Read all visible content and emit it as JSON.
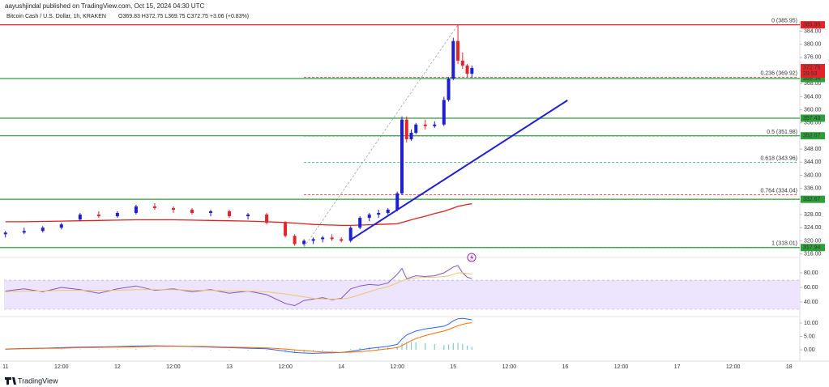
{
  "chart_data": [
    {
      "type": "candlestick",
      "title": "aayushjindal published on TradingView.com, Oct 15, 2024 04:30 UTC",
      "subtitle": "Bitcoin Cash / U.S. Dollar, 1h, KRAKEN",
      "ohlc": "O369.83 H372.75 L369.75 C372.75 +3.06 (+0.83%)",
      "up_color": "#1f1fd1",
      "down_color": "#e5242a",
      "x": [
        0,
        4,
        8,
        12,
        16,
        20,
        24,
        28,
        32,
        36,
        40,
        44,
        48,
        52,
        56,
        60,
        62,
        64,
        66,
        68,
        70,
        72,
        74,
        76,
        78,
        80,
        82,
        84,
        85,
        86,
        87,
        88,
        90,
        92,
        94,
        95,
        96,
        97,
        98,
        99,
        100
      ],
      "open": [
        322,
        322.5,
        323,
        324,
        326.5,
        328,
        327.5,
        328.5,
        330.5,
        330,
        329.5,
        328.5,
        329,
        327.5,
        328,
        325.5,
        321.5,
        319,
        320,
        320.5,
        321,
        320.5,
        320,
        324,
        327,
        328,
        328.5,
        329.5,
        334.5,
        357,
        351,
        353,
        355.5,
        355,
        355.5,
        363,
        369.5,
        381,
        375,
        373.5,
        371
      ],
      "high": [
        323,
        324,
        324.5,
        325.5,
        328.5,
        329,
        329,
        331,
        331.5,
        330.5,
        330,
        329.5,
        329.5,
        328.5,
        328.5,
        326,
        322,
        320.5,
        321,
        321.5,
        322,
        321,
        324.5,
        327.5,
        328.5,
        329.5,
        330,
        335,
        358,
        358,
        354,
        356,
        357,
        356.5,
        364,
        370,
        382,
        385.95,
        377.5,
        374,
        373.5
      ],
      "low": [
        321,
        322,
        322.5,
        323.5,
        326,
        327,
        327,
        328,
        329.5,
        328.5,
        328,
        327.5,
        327,
        326.5,
        325,
        321,
        318.5,
        318.5,
        319,
        319.5,
        320,
        319.5,
        319.5,
        323.5,
        326,
        327,
        328,
        329,
        334,
        350,
        350.5,
        352.5,
        354,
        354.5,
        355,
        362.5,
        369,
        374,
        372.5,
        370,
        369.75
      ],
      "close": [
        322.5,
        323,
        324,
        325,
        328,
        327.5,
        328.5,
        330.5,
        330,
        329.5,
        328.5,
        329,
        327.5,
        328,
        325.5,
        321.5,
        319,
        320,
        320.5,
        321,
        320.5,
        320,
        324,
        327,
        328,
        328.5,
        329.5,
        334.5,
        357,
        351,
        353,
        355.5,
        355,
        355.5,
        363,
        369.5,
        381,
        375,
        373.5,
        371,
        372.75
      ],
      "ma": {
        "color": "#e02020",
        "values": [
          325.8,
          325.8,
          325.9,
          326,
          326.1,
          326.2,
          326.3,
          326.4,
          326.4,
          326.4,
          326.3,
          326.2,
          326.1,
          326,
          325.8,
          325.6,
          325.4,
          325.2,
          325,
          324.9,
          324.8,
          324.7,
          324.7,
          324.8,
          324.9,
          325,
          325.1,
          325.2,
          325.6,
          326,
          326.4,
          326.8,
          327.5,
          328.3,
          329,
          329.5,
          330,
          330.5,
          330.8,
          331.1,
          331.3
        ]
      },
      "trendline": {
        "x": [
          74,
          120.5
        ],
        "values": [
          320.3,
          362.9
        ],
        "color": "#1f1fd1"
      },
      "fib_anchor_x": [
        64,
        97
      ],
      "fib": [
        {
          "label": "0 (385.95)",
          "value": 385.95,
          "color": "#9e9e9e"
        },
        {
          "label": "0.236 (369.92)",
          "value": 369.92,
          "color": "#e5242a"
        },
        {
          "label": "0.5 (351.98)",
          "value": 351.98,
          "color": "#4caf50"
        },
        {
          "label": "0.618 (343.96)",
          "value": 343.96,
          "color": "#26a69a"
        },
        {
          "label": "0.764 (334.04)",
          "value": 334.04,
          "color": "#e5242a"
        },
        {
          "label": "1 (318.01)",
          "value": 318.01,
          "color": "#9e9e9e"
        }
      ],
      "levels": [
        {
          "value": 385.95,
          "color": "#e5242a"
        },
        {
          "value": 369.54,
          "color": "#2e9e3a"
        },
        {
          "value": 357.43,
          "color": "#2e9e3a"
        },
        {
          "value": 352.07,
          "color": "#2e9e3a"
        },
        {
          "value": 332.67,
          "color": "#2e9e3a"
        },
        {
          "value": 317.94,
          "color": "#2e9e3a"
        }
      ],
      "last_price": 372.75,
      "countdown": "29:53",
      "xlim": [
        -0.3,
        170.3
      ],
      "xticks": [
        {
          "value": 0,
          "label": "11"
        },
        {
          "value": 12,
          "label": "12:00"
        },
        {
          "value": 24,
          "label": "12"
        },
        {
          "value": 36,
          "label": "12:00"
        },
        {
          "value": 48,
          "label": "13"
        },
        {
          "value": 60,
          "label": "12:00"
        },
        {
          "value": 72,
          "label": "14"
        },
        {
          "value": 84,
          "label": "12:00"
        },
        {
          "value": 96,
          "label": "15"
        },
        {
          "value": 108,
          "label": "12:00"
        },
        {
          "value": 120,
          "label": "16"
        },
        {
          "value": 132,
          "label": "12:00"
        },
        {
          "value": 144,
          "label": "17"
        },
        {
          "value": 156,
          "label": "12:00"
        },
        {
          "value": 168,
          "label": "18"
        }
      ],
      "ylim": [
        315.8,
        386.4
      ],
      "yticks": [
        {
          "value": 316,
          "label": "316.00"
        },
        {
          "value": 320,
          "label": "320.00"
        },
        {
          "value": 324,
          "label": "324.00"
        },
        {
          "value": 328,
          "label": "328.00"
        },
        {
          "value": 332,
          "label": "332.00"
        },
        {
          "value": 336,
          "label": "336.00"
        },
        {
          "value": 340,
          "label": "340.00"
        },
        {
          "value": 344,
          "label": "344.00"
        },
        {
          "value": 348,
          "label": "348.00"
        },
        {
          "value": 352,
          "label": "352.00"
        },
        {
          "value": 356,
          "label": "356.00"
        },
        {
          "value": 360,
          "label": "360.00"
        },
        {
          "value": 364,
          "label": "364.00"
        },
        {
          "value": 368,
          "label": "368.00"
        },
        {
          "value": 372,
          "label": "372.00"
        },
        {
          "value": 376,
          "label": "376.00"
        },
        {
          "value": 380,
          "label": "380.00"
        },
        {
          "value": 384,
          "label": "384.00"
        }
      ]
    },
    {
      "type": "line",
      "x": [
        0,
        4,
        8,
        12,
        16,
        20,
        24,
        28,
        32,
        36,
        40,
        44,
        48,
        52,
        56,
        60,
        62,
        64,
        66,
        68,
        70,
        72,
        74,
        76,
        78,
        80,
        82,
        84,
        85,
        86,
        87,
        88,
        90,
        92,
        94,
        95,
        96,
        97,
        98,
        99,
        100
      ],
      "series": [
        {
          "color": "#7e57c2",
          "values": [
            55,
            58,
            54,
            60,
            57,
            52,
            58,
            62,
            56,
            58,
            54,
            57,
            52,
            55,
            50,
            38,
            35,
            42,
            44,
            46,
            43,
            45,
            58,
            62,
            64,
            63,
            66,
            78,
            86,
            72,
            74,
            76,
            75,
            76,
            80,
            84,
            88,
            90,
            80,
            74,
            72
          ]
        },
        {
          "color": "#f2c46d",
          "values": [
            54,
            55,
            55,
            56,
            56,
            56,
            56,
            57,
            57,
            57,
            56,
            56,
            55,
            55,
            54,
            51,
            49,
            47,
            45,
            44,
            44,
            44,
            46,
            50,
            54,
            58,
            61,
            66,
            69,
            71,
            72,
            73,
            74,
            74,
            75,
            76,
            78,
            80,
            80,
            79,
            78
          ]
        }
      ],
      "band": [
        30,
        70
      ],
      "band_color": "#e9defc",
      "ylim": [
        21.1,
        96.7
      ],
      "yticks": [
        {
          "value": 40,
          "label": "40.00"
        },
        {
          "value": 60,
          "label": "60.00"
        },
        {
          "value": 80,
          "label": "80.00"
        }
      ]
    },
    {
      "type": "macd",
      "x": [
        0,
        4,
        8,
        12,
        16,
        20,
        24,
        28,
        32,
        36,
        40,
        44,
        48,
        52,
        56,
        60,
        62,
        64,
        66,
        68,
        70,
        72,
        74,
        76,
        78,
        80,
        82,
        84,
        85,
        86,
        87,
        88,
        90,
        92,
        94,
        95,
        96,
        97,
        98,
        99,
        100
      ],
      "series": [
        {
          "color": "#2962ff",
          "values": [
            0.3,
            0.5,
            0.6,
            0.8,
            1,
            1.1,
            1.2,
            1.4,
            1.5,
            1.4,
            1.2,
            1,
            0.8,
            0.6,
            0.4,
            -0.5,
            -1,
            -1.2,
            -1.3,
            -1.2,
            -1.1,
            -1,
            -0.6,
            0,
            0.5,
            0.9,
            1.3,
            2,
            4,
            5.5,
            6.3,
            7,
            7.8,
            8.3,
            8.8,
            9.6,
            10.8,
            11.6,
            11.7,
            11.5,
            11.2
          ]
        },
        {
          "color": "#ff6d00",
          "values": [
            0.2,
            0.4,
            0.5,
            0.6,
            0.8,
            0.9,
            1,
            1.1,
            1.3,
            1.3,
            1.3,
            1.2,
            1,
            0.9,
            0.7,
            0.3,
            0,
            -0.3,
            -0.6,
            -0.8,
            -0.9,
            -1,
            -0.9,
            -0.7,
            -0.4,
            0,
            0.4,
            0.8,
            1.6,
            2.5,
            3.4,
            4.2,
            5.3,
            6.2,
            7,
            7.6,
            8.3,
            9,
            9.5,
            9.9,
            10.1
          ]
        }
      ],
      "histogram": {
        "color": "#80cbc4",
        "values": [
          0.1,
          0.1,
          0.1,
          0.2,
          0.2,
          0.2,
          0.2,
          0.3,
          0.2,
          0.1,
          -0.1,
          -0.2,
          -0.2,
          -0.3,
          -0.3,
          -0.8,
          -1,
          -0.9,
          -0.7,
          -0.4,
          -0.2,
          0,
          0.3,
          0.7,
          0.9,
          0.9,
          0.9,
          1.2,
          2.4,
          3,
          2.9,
          2.8,
          2.5,
          2.1,
          1.8,
          2,
          2.5,
          2.6,
          2.2,
          1.6,
          1.1
        ]
      },
      "ylim": [
        -2.4,
        12.1
      ],
      "yticks": [
        {
          "value": 0,
          "label": "0.00"
        },
        {
          "value": 5,
          "label": "5.00"
        },
        {
          "value": 10,
          "label": "10.00"
        }
      ]
    }
  ],
  "footer": {
    "brand": "TradingView"
  }
}
